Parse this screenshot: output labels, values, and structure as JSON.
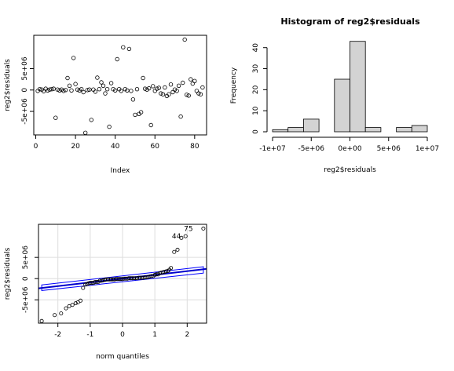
{
  "chart_data": [
    {
      "type": "scatter",
      "xlabel": "Index",
      "ylabel": "reg2$residuals",
      "xlim": [
        -1,
        86
      ],
      "ylim": [
        -10500000,
        12800000
      ],
      "xticks": [
        0,
        20,
        40,
        60,
        80
      ],
      "yticks": [
        -5000000,
        0,
        5000000
      ],
      "ytick_labels": [
        "-5e+06",
        "0",
        "5e+06"
      ],
      "points": [
        [
          1,
          -200000
        ],
        [
          2,
          200000
        ],
        [
          3,
          100000
        ],
        [
          4,
          -300000
        ],
        [
          5,
          300000
        ],
        [
          6,
          -100000
        ],
        [
          7,
          100000
        ],
        [
          8,
          200000
        ],
        [
          9,
          300000
        ],
        [
          10,
          -6500000
        ],
        [
          11,
          100000
        ],
        [
          12,
          -100000
        ],
        [
          13,
          100000
        ],
        [
          14,
          -200000
        ],
        [
          15,
          0
        ],
        [
          16,
          2800000
        ],
        [
          17,
          1000000
        ],
        [
          18,
          -100000
        ],
        [
          19,
          7500000
        ],
        [
          20,
          1400000
        ],
        [
          21,
          100000
        ],
        [
          22,
          -100000
        ],
        [
          23,
          200000
        ],
        [
          24,
          -500000
        ],
        [
          25,
          -10000000
        ],
        [
          26,
          0
        ],
        [
          27,
          100000
        ],
        [
          28,
          -7000000
        ],
        [
          29,
          100000
        ],
        [
          30,
          -400000
        ],
        [
          31,
          2900000
        ],
        [
          32,
          200000
        ],
        [
          33,
          1800000
        ],
        [
          34,
          1000000
        ],
        [
          35,
          -800000
        ],
        [
          36,
          200000
        ],
        [
          37,
          -8600000
        ],
        [
          38,
          1600000
        ],
        [
          39,
          200000
        ],
        [
          40,
          -100000
        ],
        [
          41,
          7200000
        ],
        [
          42,
          200000
        ],
        [
          43,
          -200000
        ],
        [
          44,
          10000000
        ],
        [
          45,
          200000
        ],
        [
          46,
          -100000
        ],
        [
          47,
          9600000
        ],
        [
          48,
          -200000
        ],
        [
          49,
          -2200000
        ],
        [
          50,
          -5800000
        ],
        [
          51,
          200000
        ],
        [
          52,
          -5600000
        ],
        [
          53,
          -5200000
        ],
        [
          54,
          2800000
        ],
        [
          55,
          300000
        ],
        [
          56,
          100000
        ],
        [
          57,
          400000
        ],
        [
          58,
          -8200000
        ],
        [
          59,
          900000
        ],
        [
          60,
          -200000
        ],
        [
          61,
          300000
        ],
        [
          62,
          500000
        ],
        [
          63,
          -800000
        ],
        [
          64,
          -1000000
        ],
        [
          65,
          600000
        ],
        [
          66,
          -1400000
        ],
        [
          67,
          -1000000
        ],
        [
          68,
          1300000
        ],
        [
          69,
          -500000
        ],
        [
          70,
          100000
        ],
        [
          71,
          -200000
        ],
        [
          72,
          1000000
        ],
        [
          73,
          -6200000
        ],
        [
          74,
          1700000
        ],
        [
          75,
          11800000
        ],
        [
          76,
          -1100000
        ],
        [
          77,
          -1300000
        ],
        [
          78,
          2500000
        ],
        [
          79,
          1500000
        ],
        [
          80,
          2100000
        ],
        [
          81,
          -200000
        ],
        [
          82,
          -800000
        ],
        [
          83,
          -1000000
        ],
        [
          84,
          600000
        ]
      ]
    },
    {
      "type": "bar",
      "title": "Histogram of reg2$residuals",
      "xlabel": "reg2$residuals",
      "ylabel": "Frequency",
      "xlim": [
        -10000000,
        10000000
      ],
      "ylim": [
        0,
        44
      ],
      "xticks": [
        -10000000,
        -5000000,
        0,
        5000000,
        10000000
      ],
      "xtick_labels": [
        "-1e+07",
        "-5e+06",
        "0e+00",
        "5e+06",
        "1e+07"
      ],
      "yticks": [
        0,
        10,
        20,
        30,
        40
      ],
      "bins": [
        {
          "start": -10000000,
          "end": -8000000,
          "count": 1
        },
        {
          "start": -8000000,
          "end": -6000000,
          "count": 2
        },
        {
          "start": -6000000,
          "end": -4000000,
          "count": 6
        },
        {
          "start": -4000000,
          "end": -2000000,
          "count": 0
        },
        {
          "start": -2000000,
          "end": 0,
          "count": 25
        },
        {
          "start": 0,
          "end": 2000000,
          "count": 43
        },
        {
          "start": 2000000,
          "end": 4000000,
          "count": 2
        },
        {
          "start": 4000000,
          "end": 6000000,
          "count": 0
        },
        {
          "start": 6000000,
          "end": 8000000,
          "count": 2
        },
        {
          "start": 8000000,
          "end": 10000000,
          "count": 3
        }
      ]
    },
    {
      "type": "scatter",
      "xlabel": "norm quantiles",
      "ylabel": "reg2$residuals",
      "xlim": [
        -2.6,
        2.6
      ],
      "ylim": [
        -10500000,
        12800000
      ],
      "xticks": [
        -2,
        -1,
        0,
        1,
        2
      ],
      "yticks": [
        -5000000,
        0,
        5000000
      ],
      "ytick_labels": [
        "-5e+06",
        "0",
        "5e+06"
      ],
      "grid": true,
      "annotations": [
        {
          "label": "44",
          "x": 1.88,
          "y": 10000000
        },
        {
          "label": "75",
          "x": 2.25,
          "y": 11800000
        }
      ],
      "reference_line": {
        "x": [
          -2.6,
          2.6
        ],
        "y": [
          -2300000,
          2300000
        ]
      },
      "envelope_upper": {
        "x": [
          -2.5,
          2.5
        ],
        "y": [
          -1500000,
          2800000
        ]
      },
      "envelope_lower": {
        "x": [
          -2.5,
          2.5
        ],
        "y": [
          -2800000,
          1300000
        ]
      },
      "points": [
        [
          -2.5,
          -10000000
        ],
        [
          -2.1,
          -8600000
        ],
        [
          -1.9,
          -8200000
        ],
        [
          -1.75,
          -7000000
        ],
        [
          -1.65,
          -6500000
        ],
        [
          -1.55,
          -6200000
        ],
        [
          -1.45,
          -5800000
        ],
        [
          -1.38,
          -5600000
        ],
        [
          -1.3,
          -5200000
        ],
        [
          -1.22,
          -2200000
        ],
        [
          -1.15,
          -1400000
        ],
        [
          -1.1,
          -1300000
        ],
        [
          -1.05,
          -1100000
        ],
        [
          -1.0,
          -1000000
        ],
        [
          -0.95,
          -1000000
        ],
        [
          -0.9,
          -1000000
        ],
        [
          -0.85,
          -800000
        ],
        [
          -0.8,
          -800000
        ],
        [
          -0.75,
          -800000
        ],
        [
          -0.7,
          -500000
        ],
        [
          -0.65,
          -500000
        ],
        [
          -0.6,
          -400000
        ],
        [
          -0.55,
          -300000
        ],
        [
          -0.5,
          -200000
        ],
        [
          -0.45,
          -200000
        ],
        [
          -0.4,
          -200000
        ],
        [
          -0.35,
          -200000
        ],
        [
          -0.3,
          -200000
        ],
        [
          -0.25,
          -200000
        ],
        [
          -0.2,
          -100000
        ],
        [
          -0.15,
          -100000
        ],
        [
          -0.1,
          -100000
        ],
        [
          -0.05,
          -100000
        ],
        [
          0.0,
          -100000
        ],
        [
          0.05,
          0
        ],
        [
          0.1,
          0
        ],
        [
          0.15,
          0
        ],
        [
          0.2,
          100000
        ],
        [
          0.25,
          100000
        ],
        [
          0.3,
          100000
        ],
        [
          0.35,
          100000
        ],
        [
          0.4,
          100000
        ],
        [
          0.45,
          100000
        ],
        [
          0.5,
          200000
        ],
        [
          0.55,
          200000
        ],
        [
          0.6,
          200000
        ],
        [
          0.65,
          200000
        ],
        [
          0.7,
          300000
        ],
        [
          0.75,
          300000
        ],
        [
          0.8,
          400000
        ],
        [
          0.85,
          500000
        ],
        [
          0.9,
          600000
        ],
        [
          0.95,
          600000
        ],
        [
          1.0,
          900000
        ],
        [
          1.05,
          1000000
        ],
        [
          1.1,
          1000000
        ],
        [
          1.15,
          1300000
        ],
        [
          1.2,
          1400000
        ],
        [
          1.25,
          1500000
        ],
        [
          1.3,
          1600000
        ],
        [
          1.35,
          1700000
        ],
        [
          1.4,
          1800000
        ],
        [
          1.45,
          2100000
        ],
        [
          1.5,
          2500000
        ],
        [
          1.6,
          6300000
        ],
        [
          1.7,
          6800000
        ],
        [
          1.82,
          9600000
        ],
        [
          1.95,
          10000000
        ],
        [
          2.5,
          11800000
        ]
      ]
    }
  ]
}
